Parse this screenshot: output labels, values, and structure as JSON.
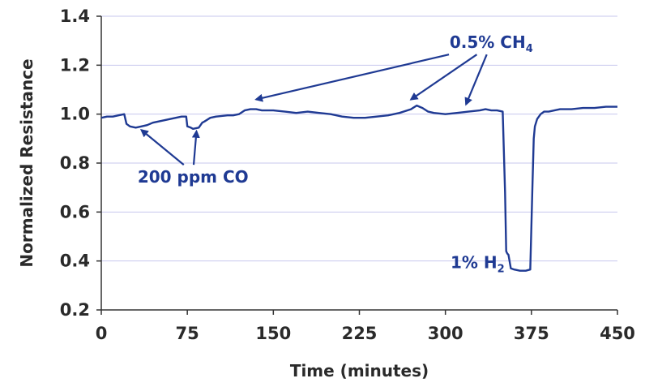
{
  "chart_data": {
    "type": "line",
    "title": "",
    "xlabel": "Time (minutes)",
    "ylabel": "Normalized Resistance",
    "xlim": [
      0,
      450
    ],
    "ylim": [
      0.2,
      1.4
    ],
    "x_ticks": [
      0,
      75,
      150,
      225,
      300,
      375,
      450
    ],
    "y_ticks": [
      0.2,
      0.4,
      0.6,
      0.8,
      1.0,
      1.2,
      1.4
    ],
    "x_tick_labels": [
      "0",
      "75",
      "150",
      "225",
      "300",
      "375",
      "450"
    ],
    "y_tick_labels": [
      "0.2",
      "0.4",
      "0.6",
      "0.8",
      "1.0",
      "1.2",
      "1.4"
    ],
    "grid": "horizontal",
    "accent_color": "#1f3a93",
    "series": [
      {
        "color": "#1f3a93",
        "x": [
          0,
          5,
          10,
          15,
          20,
          22,
          25,
          30,
          35,
          40,
          45,
          50,
          55,
          60,
          65,
          70,
          74,
          75,
          78,
          80,
          85,
          88,
          90,
          95,
          100,
          110,
          115,
          120,
          125,
          130,
          135,
          140,
          150,
          160,
          170,
          180,
          190,
          200,
          210,
          220,
          230,
          240,
          250,
          260,
          270,
          275,
          280,
          285,
          290,
          300,
          310,
          320,
          330,
          335,
          340,
          345,
          350,
          352,
          353,
          354,
          355,
          357,
          360,
          365,
          370,
          374,
          376,
          377,
          378,
          380,
          383,
          386,
          390,
          400,
          410,
          420,
          430,
          440,
          450
        ],
        "y": [
          0.985,
          0.99,
          0.99,
          0.995,
          1.0,
          0.96,
          0.95,
          0.945,
          0.95,
          0.955,
          0.965,
          0.97,
          0.975,
          0.98,
          0.985,
          0.99,
          0.99,
          0.95,
          0.945,
          0.94,
          0.945,
          0.965,
          0.97,
          0.985,
          0.99,
          0.995,
          0.995,
          1.0,
          1.015,
          1.02,
          1.02,
          1.015,
          1.015,
          1.01,
          1.005,
          1.01,
          1.005,
          1.0,
          0.99,
          0.985,
          0.985,
          0.99,
          0.995,
          1.005,
          1.02,
          1.035,
          1.025,
          1.01,
          1.005,
          1.0,
          1.005,
          1.01,
          1.015,
          1.02,
          1.015,
          1.015,
          1.01,
          0.68,
          0.44,
          0.43,
          0.425,
          0.37,
          0.365,
          0.36,
          0.36,
          0.365,
          0.72,
          0.9,
          0.95,
          0.98,
          1.0,
          1.01,
          1.01,
          1.02,
          1.02,
          1.025,
          1.025,
          1.03,
          1.03
        ]
      }
    ],
    "annotations": [
      {
        "text": "0.5% CH",
        "subscript": "4",
        "text_x": 340,
        "text_y": 1.27,
        "arrows_to": [
          [
            135,
            1.06
          ],
          [
            270,
            1.06
          ],
          [
            318,
            1.04
          ]
        ]
      },
      {
        "text": "200 ppm CO",
        "subscript": "",
        "text_x": 80,
        "text_y": 0.72,
        "arrows_to": [
          [
            35,
            0.935
          ],
          [
            83,
            0.93
          ]
        ]
      },
      {
        "text": "1% H",
        "subscript": "2",
        "text_x": 328,
        "text_y": 0.37,
        "arrows_to": []
      }
    ]
  }
}
